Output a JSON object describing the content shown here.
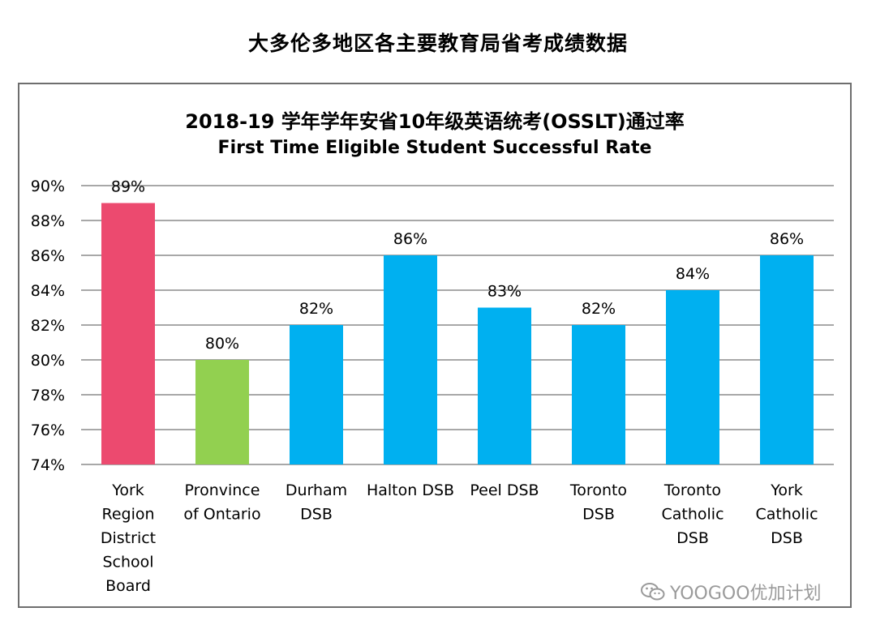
{
  "page_title": "大多伦多地区各主要教育局省考成绩数据",
  "watermark": {
    "text": "YOOGOO优加计划",
    "icon": "wechat-icon"
  },
  "colors": {
    "york_region": "#ec4a6f",
    "province": "#92d050",
    "others": "#00b0f0",
    "grid": "#8c8c8c"
  },
  "chart_data": {
    "type": "bar",
    "title": "2018-19 学年学年安省10年级英语统考(OSSLT)通过率",
    "subtitle": "First Time Eligible Student Successful Rate",
    "xlabel": "",
    "ylabel": "",
    "ylim": [
      74,
      90
    ],
    "yticks": [
      "74%",
      "76%",
      "78%",
      "80%",
      "82%",
      "84%",
      "86%",
      "88%",
      "90%"
    ],
    "grid": true,
    "legend": "none",
    "categories": [
      [
        "York",
        "Region",
        "District",
        "School",
        "Board"
      ],
      [
        "Pronvince",
        "of Ontario"
      ],
      [
        "Durham",
        "DSB"
      ],
      [
        "Halton DSB"
      ],
      [
        "Peel DSB"
      ],
      [
        "Toronto",
        "DSB"
      ],
      [
        "Toronto",
        "Catholic",
        "DSB"
      ],
      [
        "York",
        "Catholic",
        "DSB"
      ]
    ],
    "values": [
      89,
      80,
      82,
      86,
      83,
      82,
      84,
      86
    ],
    "data_labels": [
      "89%",
      "80%",
      "82%",
      "86%",
      "83%",
      "82%",
      "84%",
      "86%"
    ],
    "bar_colors": [
      "#ec4a6f",
      "#92d050",
      "#00b0f0",
      "#00b0f0",
      "#00b0f0",
      "#00b0f0",
      "#00b0f0",
      "#00b0f0"
    ]
  }
}
